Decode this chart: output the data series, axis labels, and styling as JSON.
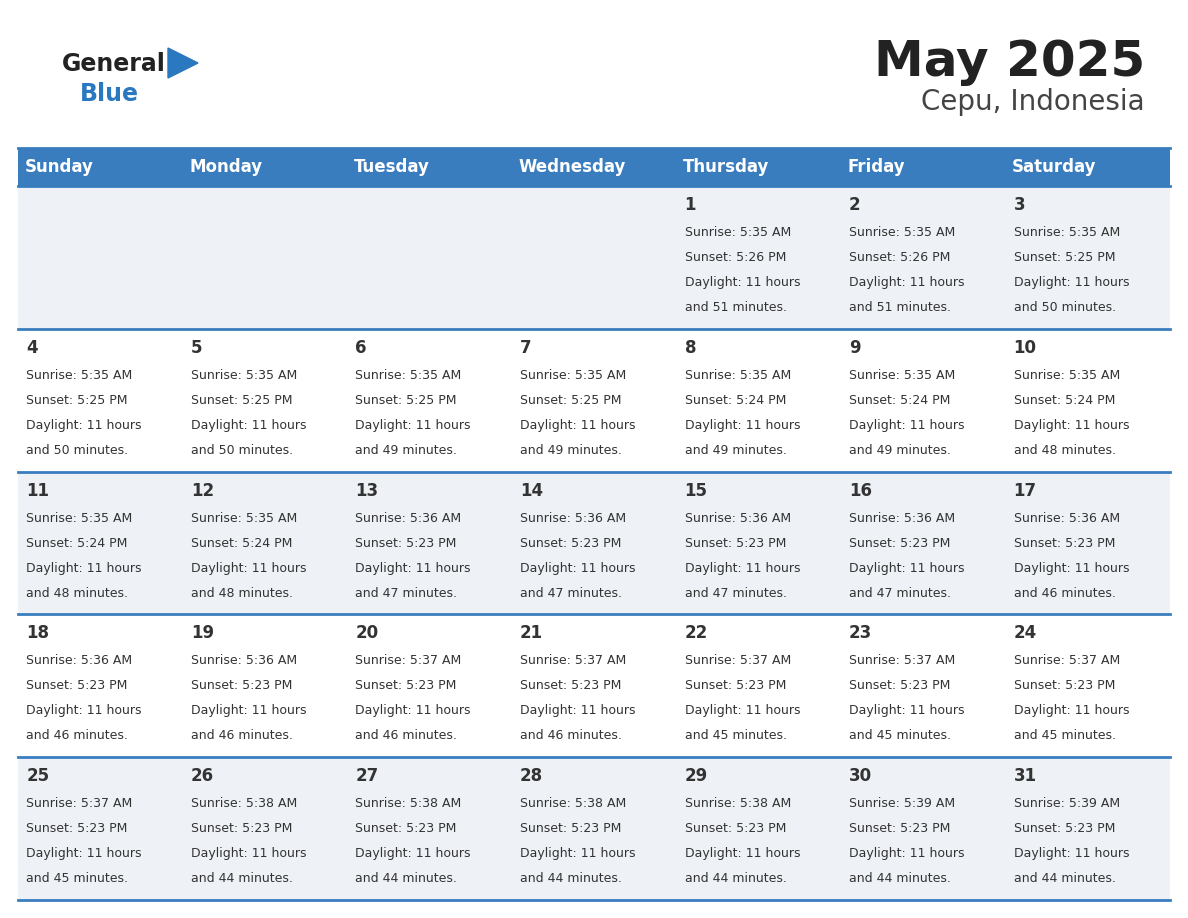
{
  "title": "May 2025",
  "subtitle": "Cepu, Indonesia",
  "days_of_week": [
    "Sunday",
    "Monday",
    "Tuesday",
    "Wednesday",
    "Thursday",
    "Friday",
    "Saturday"
  ],
  "header_bg": "#3a7dbf",
  "header_text": "#ffffff",
  "cell_bg_light": "#eef2f7",
  "cell_bg_white": "#ffffff",
  "row_line_color": "#3a7dbf",
  "text_color": "#333333",
  "day_num_color": "#333333",
  "logo_general_color": "#222222",
  "logo_blue_color": "#2a78bf",
  "logo_triangle_color": "#2a78bf",
  "calendar_data": [
    [
      null,
      null,
      null,
      null,
      {
        "day": 1,
        "sunrise": "5:35 AM",
        "sunset": "5:26 PM",
        "daylight": "11 hours and 51 minutes."
      },
      {
        "day": 2,
        "sunrise": "5:35 AM",
        "sunset": "5:26 PM",
        "daylight": "11 hours and 51 minutes."
      },
      {
        "day": 3,
        "sunrise": "5:35 AM",
        "sunset": "5:25 PM",
        "daylight": "11 hours and 50 minutes."
      }
    ],
    [
      {
        "day": 4,
        "sunrise": "5:35 AM",
        "sunset": "5:25 PM",
        "daylight": "11 hours and 50 minutes."
      },
      {
        "day": 5,
        "sunrise": "5:35 AM",
        "sunset": "5:25 PM",
        "daylight": "11 hours and 50 minutes."
      },
      {
        "day": 6,
        "sunrise": "5:35 AM",
        "sunset": "5:25 PM",
        "daylight": "11 hours and 49 minutes."
      },
      {
        "day": 7,
        "sunrise": "5:35 AM",
        "sunset": "5:25 PM",
        "daylight": "11 hours and 49 minutes."
      },
      {
        "day": 8,
        "sunrise": "5:35 AM",
        "sunset": "5:24 PM",
        "daylight": "11 hours and 49 minutes."
      },
      {
        "day": 9,
        "sunrise": "5:35 AM",
        "sunset": "5:24 PM",
        "daylight": "11 hours and 49 minutes."
      },
      {
        "day": 10,
        "sunrise": "5:35 AM",
        "sunset": "5:24 PM",
        "daylight": "11 hours and 48 minutes."
      }
    ],
    [
      {
        "day": 11,
        "sunrise": "5:35 AM",
        "sunset": "5:24 PM",
        "daylight": "11 hours and 48 minutes."
      },
      {
        "day": 12,
        "sunrise": "5:35 AM",
        "sunset": "5:24 PM",
        "daylight": "11 hours and 48 minutes."
      },
      {
        "day": 13,
        "sunrise": "5:36 AM",
        "sunset": "5:23 PM",
        "daylight": "11 hours and 47 minutes."
      },
      {
        "day": 14,
        "sunrise": "5:36 AM",
        "sunset": "5:23 PM",
        "daylight": "11 hours and 47 minutes."
      },
      {
        "day": 15,
        "sunrise": "5:36 AM",
        "sunset": "5:23 PM",
        "daylight": "11 hours and 47 minutes."
      },
      {
        "day": 16,
        "sunrise": "5:36 AM",
        "sunset": "5:23 PM",
        "daylight": "11 hours and 47 minutes."
      },
      {
        "day": 17,
        "sunrise": "5:36 AM",
        "sunset": "5:23 PM",
        "daylight": "11 hours and 46 minutes."
      }
    ],
    [
      {
        "day": 18,
        "sunrise": "5:36 AM",
        "sunset": "5:23 PM",
        "daylight": "11 hours and 46 minutes."
      },
      {
        "day": 19,
        "sunrise": "5:36 AM",
        "sunset": "5:23 PM",
        "daylight": "11 hours and 46 minutes."
      },
      {
        "day": 20,
        "sunrise": "5:37 AM",
        "sunset": "5:23 PM",
        "daylight": "11 hours and 46 minutes."
      },
      {
        "day": 21,
        "sunrise": "5:37 AM",
        "sunset": "5:23 PM",
        "daylight": "11 hours and 46 minutes."
      },
      {
        "day": 22,
        "sunrise": "5:37 AM",
        "sunset": "5:23 PM",
        "daylight": "11 hours and 45 minutes."
      },
      {
        "day": 23,
        "sunrise": "5:37 AM",
        "sunset": "5:23 PM",
        "daylight": "11 hours and 45 minutes."
      },
      {
        "day": 24,
        "sunrise": "5:37 AM",
        "sunset": "5:23 PM",
        "daylight": "11 hours and 45 minutes."
      }
    ],
    [
      {
        "day": 25,
        "sunrise": "5:37 AM",
        "sunset": "5:23 PM",
        "daylight": "11 hours and 45 minutes."
      },
      {
        "day": 26,
        "sunrise": "5:38 AM",
        "sunset": "5:23 PM",
        "daylight": "11 hours and 44 minutes."
      },
      {
        "day": 27,
        "sunrise": "5:38 AM",
        "sunset": "5:23 PM",
        "daylight": "11 hours and 44 minutes."
      },
      {
        "day": 28,
        "sunrise": "5:38 AM",
        "sunset": "5:23 PM",
        "daylight": "11 hours and 44 minutes."
      },
      {
        "day": 29,
        "sunrise": "5:38 AM",
        "sunset": "5:23 PM",
        "daylight": "11 hours and 44 minutes."
      },
      {
        "day": 30,
        "sunrise": "5:39 AM",
        "sunset": "5:23 PM",
        "daylight": "11 hours and 44 minutes."
      },
      {
        "day": 31,
        "sunrise": "5:39 AM",
        "sunset": "5:23 PM",
        "daylight": "11 hours and 44 minutes."
      }
    ]
  ]
}
